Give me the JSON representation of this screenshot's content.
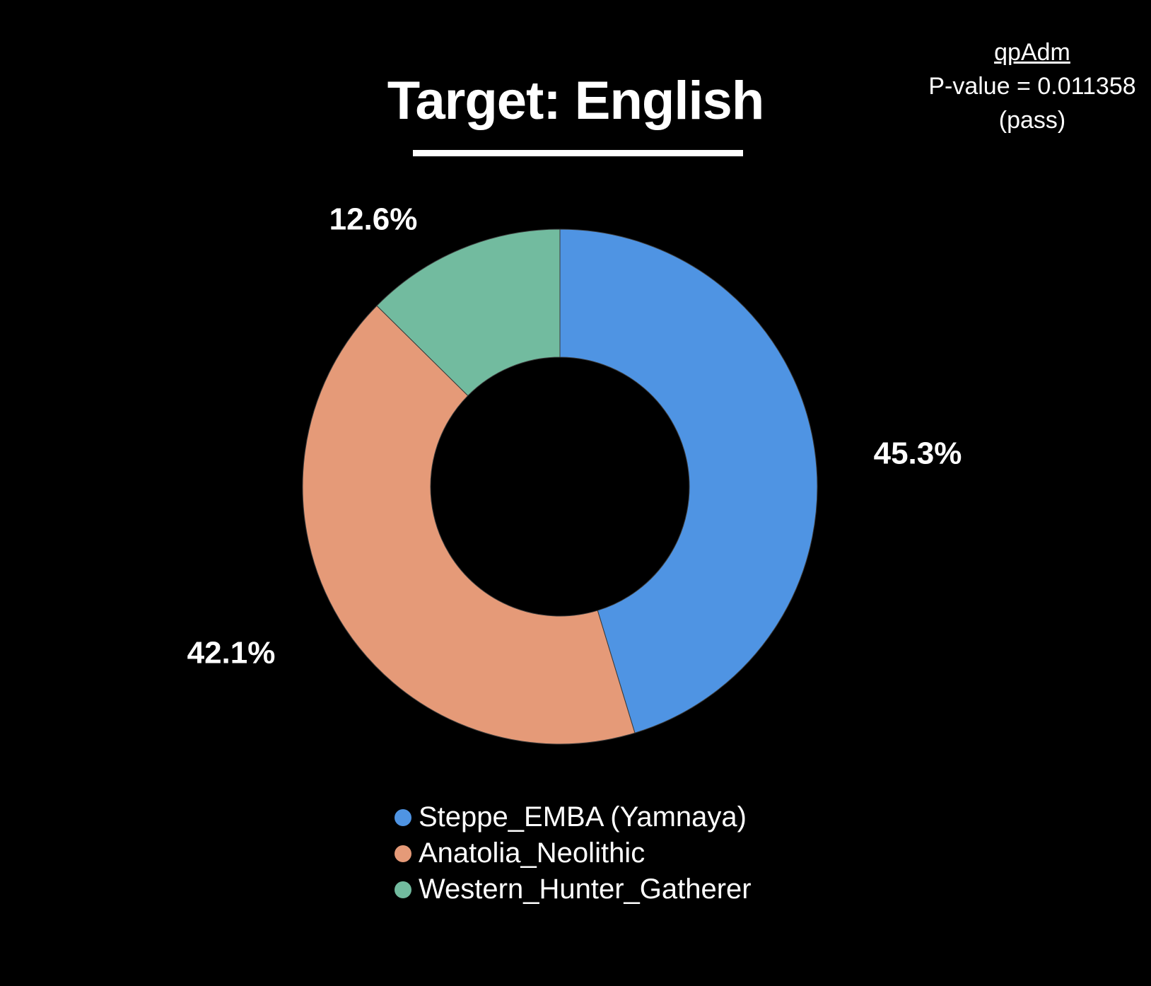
{
  "chart_data": {
    "type": "pie",
    "title": "Target: English",
    "donut": true,
    "categories": [
      "Steppe_EMBA (Yamnaya)",
      "Anatolia_Neolithic",
      "Western_Hunter_Gatherer"
    ],
    "values": [
      45.3,
      42.1,
      12.6
    ],
    "value_labels": [
      "45.3%",
      "42.1%",
      "12.6%"
    ],
    "colors": [
      "#4f94e3",
      "#e59a78",
      "#72bb9f"
    ],
    "legend_position": "bottom"
  },
  "annotation": {
    "method": "qpAdm",
    "p_value": "P-value = 0.011358",
    "status": "(pass)"
  },
  "colors": {
    "background": "#000000",
    "text": "#ffffff"
  }
}
